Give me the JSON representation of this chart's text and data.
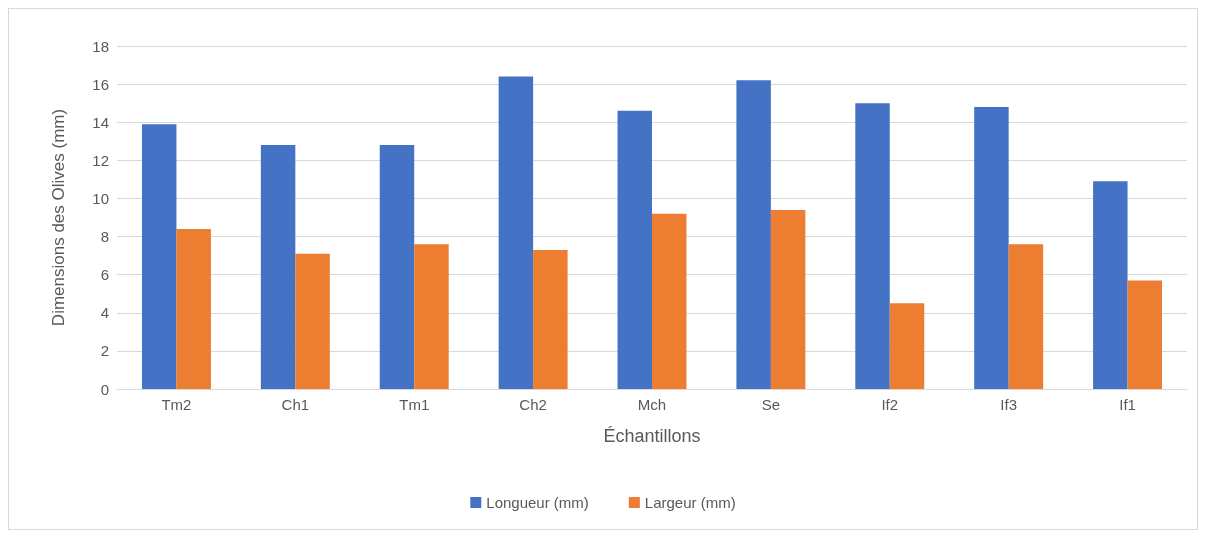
{
  "chart_data": {
    "type": "bar",
    "xlabel": "Échantillons",
    "ylabel": "Dimensions des Olives (mm)",
    "categories": [
      "Tm2",
      "Ch1",
      "Tm1",
      "Ch2",
      "Mch",
      "Se",
      "If2",
      "If3",
      "If1"
    ],
    "series": [
      {
        "name": "Longueur (mm)",
        "color": "#4472c4",
        "values": [
          13.9,
          12.8,
          12.8,
          16.4,
          14.6,
          16.2,
          15.0,
          14.8,
          10.9
        ]
      },
      {
        "name": "Largeur (mm)",
        "color": "#ed7d31",
        "values": [
          8.4,
          7.1,
          7.6,
          7.3,
          9.2,
          9.4,
          4.5,
          7.6,
          5.7
        ]
      }
    ],
    "ylim": [
      0,
      18
    ],
    "yticks": [
      0,
      2,
      4,
      6,
      8,
      10,
      12,
      14,
      16,
      18
    ],
    "grid": "y",
    "legend": "bottom"
  }
}
